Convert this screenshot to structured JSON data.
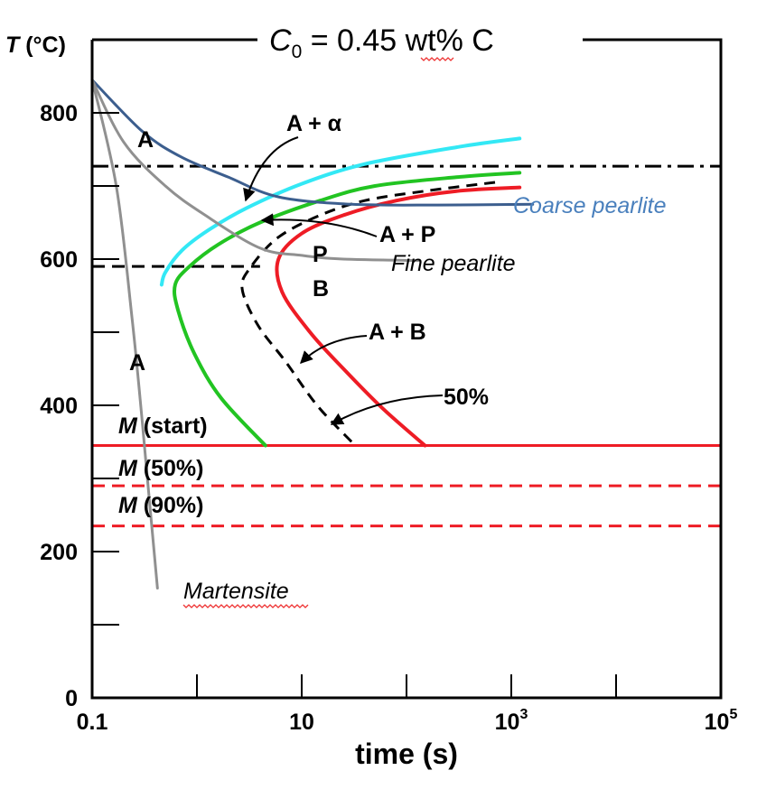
{
  "chart_data": {
    "type": "line",
    "title_prefix": "C",
    "title_sub": "0",
    "title_suffix": " = 0.45 wt% C",
    "ylabel_italic": "T",
    "ylabel_rest": " (°C)",
    "xlabel": "time (s)",
    "x_scale": "log",
    "xlim": [
      0.1,
      100000
    ],
    "ylim": [
      0,
      900
    ],
    "x_ticks": [
      {
        "value": 0.1,
        "base": "0.1",
        "exp": ""
      },
      {
        "value": 10,
        "base": "10",
        "exp": ""
      },
      {
        "value": 1000,
        "base": "10",
        "exp": "3"
      },
      {
        "value": 100000,
        "base": "10",
        "exp": "5"
      }
    ],
    "y_ticks": [
      {
        "value": 0,
        "label": "0"
      },
      {
        "value": 200,
        "label": "200"
      },
      {
        "value": 400,
        "label": "400"
      },
      {
        "value": 600,
        "label": "600"
      },
      {
        "value": 800,
        "label": "800"
      }
    ],
    "y_minor_ticks": [
      100,
      300,
      500,
      700
    ],
    "x_minor_ticks": [
      1,
      100,
      10000
    ],
    "reference_lines": [
      {
        "name": "eutectoid-temperature",
        "y": 727,
        "style": "dash-dot",
        "color": "#000000"
      },
      {
        "name": "bainite-boundary",
        "y": 590,
        "style": "dashed",
        "color": "#000000",
        "x_range": [
          0.1,
          4
        ]
      },
      {
        "name": "m-start-line",
        "y": 345,
        "style": "solid",
        "color": "#ee1c25"
      },
      {
        "name": "m-50-line",
        "y": 290,
        "style": "dashed",
        "color": "#ee1c25"
      },
      {
        "name": "m-90-line",
        "y": 235,
        "style": "dashed",
        "color": "#ee1c25"
      }
    ],
    "series": [
      {
        "name": "start-curve",
        "color": "#33e8f5",
        "style": "solid",
        "points": [
          [
            1200,
            765
          ],
          [
            300,
            753
          ],
          [
            40,
            730
          ],
          [
            10,
            703
          ],
          [
            3,
            670
          ],
          [
            1.3,
            640
          ],
          [
            0.72,
            612
          ],
          [
            0.5,
            582
          ],
          [
            0.46,
            565
          ]
        ]
      },
      {
        "name": "finish-curve",
        "color": "#22c422",
        "style": "solid",
        "points": [
          [
            1200,
            718
          ],
          [
            300,
            712
          ],
          [
            50,
            700
          ],
          [
            15,
            680
          ],
          [
            4,
            650
          ],
          [
            1.6,
            620
          ],
          [
            0.85,
            590
          ],
          [
            0.62,
            565
          ],
          [
            0.66,
            530
          ],
          [
            0.95,
            470
          ],
          [
            1.7,
            410
          ],
          [
            4.5,
            345
          ]
        ]
      },
      {
        "name": "fifty-percent-curve",
        "color": "#000000",
        "style": "dashed",
        "points": [
          [
            700,
            705
          ],
          [
            150,
            693
          ],
          [
            40,
            680
          ],
          [
            15,
            660
          ],
          [
            6,
            630
          ],
          [
            3.3,
            590
          ],
          [
            2.7,
            560
          ],
          [
            3.8,
            510
          ],
          [
            7,
            460
          ],
          [
            14,
            400
          ],
          [
            30,
            350
          ]
        ]
      },
      {
        "name": "complete-curve",
        "color": "#ee1c25",
        "style": "solid",
        "points": [
          [
            1200,
            698
          ],
          [
            300,
            693
          ],
          [
            80,
            680
          ],
          [
            25,
            660
          ],
          [
            10,
            635
          ],
          [
            6,
            600
          ],
          [
            6.5,
            555
          ],
          [
            12,
            500
          ],
          [
            25,
            450
          ],
          [
            60,
            395
          ],
          [
            150,
            345
          ]
        ]
      },
      {
        "name": "cooling-coarse-pearlite",
        "color": "#3c5e8e",
        "style": "solid",
        "points": [
          [
            0.1,
            845
          ],
          [
            0.3,
            775
          ],
          [
            0.7,
            740
          ],
          [
            2,
            712
          ],
          [
            6,
            685
          ],
          [
            30,
            675
          ],
          [
            200,
            674
          ],
          [
            1600,
            675
          ]
        ]
      },
      {
        "name": "cooling-fine-pearlite",
        "color": "#909090",
        "style": "solid",
        "points": [
          [
            0.1,
            845
          ],
          [
            0.2,
            760
          ],
          [
            0.5,
            700
          ],
          [
            1.2,
            660
          ],
          [
            4,
            615
          ],
          [
            10,
            605
          ],
          [
            25,
            600
          ],
          [
            130,
            598
          ]
        ]
      },
      {
        "name": "cooling-martensite",
        "color": "#909090",
        "style": "solid",
        "points": [
          [
            0.1,
            845
          ],
          [
            0.17,
            700
          ],
          [
            0.24,
            520
          ],
          [
            0.3,
            380
          ],
          [
            0.36,
            255
          ],
          [
            0.42,
            150
          ]
        ]
      }
    ],
    "annotations": {
      "a_upper": "A",
      "a_plus_alpha": "A + α",
      "a_plus_p": "A + P",
      "p_label": "P",
      "b_label": "B",
      "a_plus_b": "A + B",
      "a_lower": "A",
      "fifty_percent": "50%",
      "coarse_pearlite": "Coarse pearlite",
      "fine_pearlite": "Fine pearlite",
      "martensite": "Martensite",
      "m_letter": "M",
      "m_start": " (start)",
      "m_50": " (50%)",
      "m_90": " (90%)"
    },
    "colors": {
      "coarse_label": "#4a80bd",
      "fine_label": "#000000",
      "martensite_label": "#000000",
      "spell_underline": "#e33"
    }
  }
}
